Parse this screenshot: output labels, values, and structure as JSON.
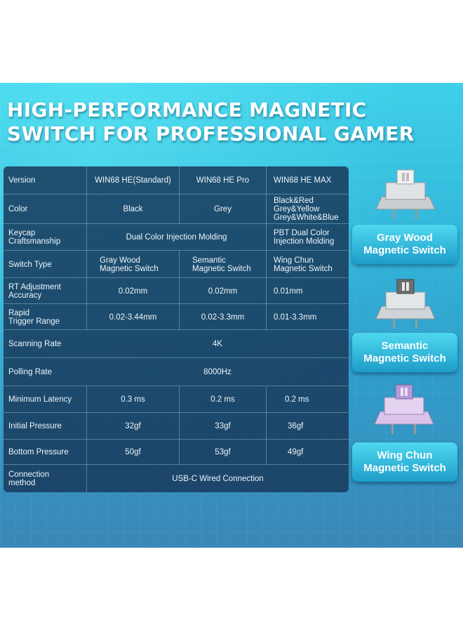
{
  "title": {
    "line1": "HIGH-PERFORMANCE MAGNETIC",
    "line2": "SWITCH FOR PROFESSIONAL GAMER"
  },
  "table": {
    "header": {
      "label": "Version",
      "c1": "WIN68 HE(Standard)",
      "c2": "WIN68 HE Pro",
      "c3": "WIN68 HE MAX"
    },
    "color": {
      "label": "Color",
      "c1": "Black",
      "c2": "Grey",
      "c3": "Black&Red\nGrey&Yellow\nGrey&White&Blue"
    },
    "keycap": {
      "label": "Keycap\nCraftsmanship",
      "c12": "Dual Color Injection Molding",
      "c3": "PBT Dual Color\nInjection Molding"
    },
    "switch_type": {
      "label": "Switch Type",
      "c1": "Gray Wood\nMagnetic Switch",
      "c2": "Semantic\nMagnetic Switch",
      "c3": "Wing Chun\nMagnetic Switch"
    },
    "rt": {
      "label": "RT Adjustment\nAccuracy",
      "c1": "0.02mm",
      "c2": "0.02mm",
      "c3": "0.01mm"
    },
    "rapid": {
      "label": "Rapid\nTrigger Range",
      "c1": "0.02-3.44mm",
      "c2": "0.02-3.3mm",
      "c3": "0.01-3.3mm"
    },
    "scanning": {
      "label": "Scanning Rate",
      "all": "4K"
    },
    "polling": {
      "label": "Polling Rate",
      "all": "8000Hz"
    },
    "latency": {
      "label": "Minimum Latency",
      "c1": "0.3 ms",
      "c2": "0.2 ms",
      "c3": "0.2 ms"
    },
    "initial": {
      "label": "Initial Pressure",
      "c1": "32gf",
      "c2": "33gf",
      "c3": "36gf"
    },
    "bottom": {
      "label": "Bottom Pressure",
      "c1": "50gf",
      "c2": "53gf",
      "c3": "49gf"
    },
    "connection": {
      "label": "Connection\nmethod",
      "all": "USB-C Wired Connection"
    }
  },
  "switches": [
    {
      "name_line1": "Gray Wood",
      "name_line2": "Magnetic Switch",
      "stem_color": "#e6e6e6",
      "housing_color": "#cfd3d6"
    },
    {
      "name_line1": "Semantic",
      "name_line2": "Magnetic Switch",
      "stem_color": "#7a7a7a",
      "housing_color": "#d2d6d8"
    },
    {
      "name_line1": "Wing Chun",
      "name_line2": "Magnetic Switch",
      "stem_color": "#b89bd6",
      "housing_color": "#d8c4e8"
    }
  ]
}
